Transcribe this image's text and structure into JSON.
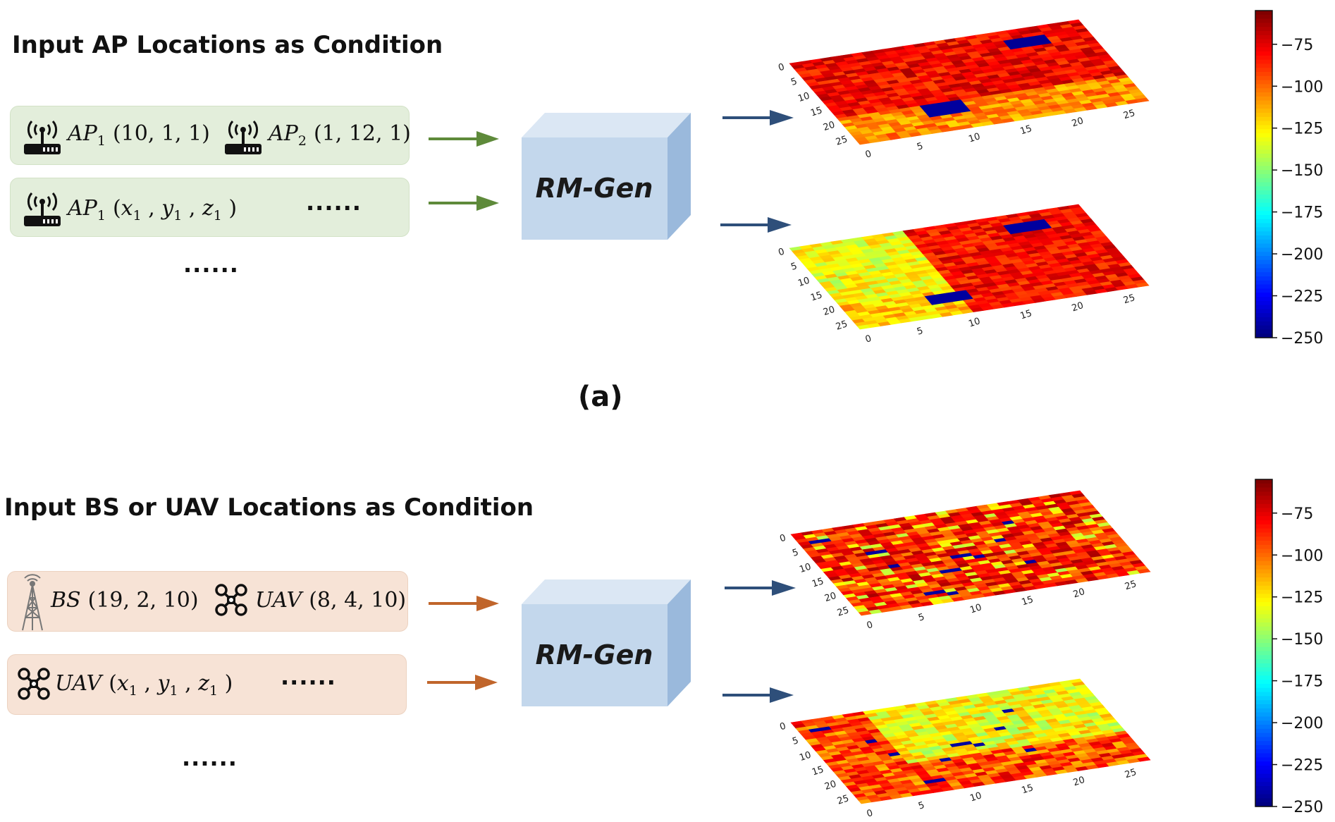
{
  "panel_a": {
    "title": "Input AP Locations as Condition",
    "row1": {
      "c1_name": "AP",
      "c1_sub": "1",
      "c1_coords": "(10, 1, 1)",
      "c2_name": "AP",
      "c2_sub": "2",
      "c2_coords": "(1, 12, 1)"
    },
    "row2": {
      "c1_name": "AP",
      "c1_sub": "1",
      "c1_open": "(",
      "x": "x",
      "y": "y",
      "z": "z",
      "s": "1",
      "c1_close": ")",
      "dots": "......"
    },
    "more_dots": "......",
    "model_label": "RM-Gen",
    "caption": "(a)",
    "colorbar_ticks": [
      "−75",
      "−100",
      "−125",
      "−150",
      "−175",
      "−200",
      "−225",
      "−250"
    ]
  },
  "panel_b": {
    "title": "Input BS or UAV Locations as Condition",
    "row1": {
      "c1_name": "BS",
      "c1_coords": "(19, 2, 10)",
      "c2_name": "UAV",
      "c2_coords": "(8, 4, 10)"
    },
    "row2": {
      "c1_name": "UAV",
      "c1_open": "(",
      "x": "x",
      "y": "y",
      "z": "z",
      "s": "1",
      "c1_close": ")",
      "dots": "......"
    },
    "more_dots": "......",
    "model_label": "RM-Gen",
    "colorbar_ticks": [
      "−75",
      "−100",
      "−125",
      "−150",
      "−175",
      "−200",
      "−225",
      "−250"
    ]
  },
  "axis_ticks": [
    "0",
    "5",
    "10",
    "15",
    "20",
    "25"
  ],
  "colors": {
    "green_arrow": "#5e8a3a",
    "orange_arrow": "#c0652b",
    "blue_arrow": "#2e4f7a",
    "cube_front": "#c3d7ec",
    "cube_top": "#dbe7f4",
    "cube_side": "#9ab9dc"
  }
}
